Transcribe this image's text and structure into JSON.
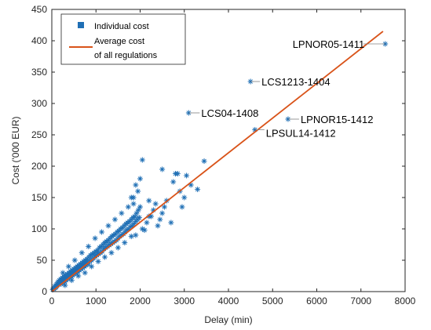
{
  "chart_data": {
    "type": "scatter",
    "title": "",
    "xlabel": "Delay (min)",
    "ylabel": "Cost ('000 EUR)",
    "xlim": [
      0,
      8000
    ],
    "ylim": [
      0,
      450
    ],
    "xticks": [
      0,
      1000,
      2000,
      3000,
      4000,
      5000,
      6000,
      7000,
      8000
    ],
    "yticks": [
      0,
      50,
      100,
      150,
      200,
      250,
      300,
      350,
      400,
      450
    ],
    "grid": false,
    "legend_position": "top-left",
    "colors": {
      "points": "#1f6fb5",
      "line": "#d95319"
    },
    "legend": {
      "points_label": "Individual cost",
      "line_label_1": "Average cost",
      "line_label_2": "of all regulations"
    },
    "trend_line": {
      "x": [
        0,
        7500
      ],
      "y": [
        0,
        415
      ]
    },
    "series": [
      {
        "name": "Individual cost",
        "points": [
          [
            20,
            3
          ],
          [
            35,
            5
          ],
          [
            50,
            4
          ],
          [
            60,
            8
          ],
          [
            75,
            6
          ],
          [
            90,
            10
          ],
          [
            100,
            7
          ],
          [
            110,
            12
          ],
          [
            120,
            9
          ],
          [
            130,
            14
          ],
          [
            140,
            11
          ],
          [
            150,
            16
          ],
          [
            160,
            13
          ],
          [
            175,
            18
          ],
          [
            190,
            15
          ],
          [
            200,
            20
          ],
          [
            210,
            12
          ],
          [
            225,
            17
          ],
          [
            240,
            22
          ],
          [
            250,
            14
          ],
          [
            260,
            19
          ],
          [
            275,
            24
          ],
          [
            290,
            16
          ],
          [
            300,
            21
          ],
          [
            310,
            26
          ],
          [
            325,
            18
          ],
          [
            340,
            23
          ],
          [
            350,
            28
          ],
          [
            360,
            20
          ],
          [
            375,
            25
          ],
          [
            390,
            30
          ],
          [
            400,
            22
          ],
          [
            410,
            27
          ],
          [
            425,
            32
          ],
          [
            440,
            24
          ],
          [
            450,
            29
          ],
          [
            460,
            34
          ],
          [
            475,
            26
          ],
          [
            490,
            31
          ],
          [
            500,
            36
          ],
          [
            510,
            28
          ],
          [
            525,
            33
          ],
          [
            540,
            38
          ],
          [
            550,
            30
          ],
          [
            560,
            35
          ],
          [
            575,
            40
          ],
          [
            590,
            32
          ],
          [
            600,
            37
          ],
          [
            610,
            42
          ],
          [
            625,
            34
          ],
          [
            640,
            39
          ],
          [
            650,
            44
          ],
          [
            660,
            36
          ],
          [
            675,
            41
          ],
          [
            690,
            46
          ],
          [
            700,
            38
          ],
          [
            710,
            43
          ],
          [
            725,
            48
          ],
          [
            740,
            40
          ],
          [
            750,
            45
          ],
          [
            760,
            50
          ],
          [
            775,
            42
          ],
          [
            790,
            47
          ],
          [
            800,
            52
          ],
          [
            820,
            44
          ],
          [
            840,
            55
          ],
          [
            860,
            48
          ],
          [
            880,
            58
          ],
          [
            900,
            50
          ],
          [
            920,
            60
          ],
          [
            940,
            53
          ],
          [
            960,
            62
          ],
          [
            980,
            56
          ],
          [
            1000,
            64
          ],
          [
            1020,
            58
          ],
          [
            1040,
            66
          ],
          [
            1060,
            60
          ],
          [
            1080,
            70
          ],
          [
            1100,
            62
          ],
          [
            1120,
            72
          ],
          [
            1140,
            64
          ],
          [
            1160,
            75
          ],
          [
            1180,
            68
          ],
          [
            1200,
            78
          ],
          [
            1220,
            70
          ],
          [
            1240,
            80
          ],
          [
            1260,
            72
          ],
          [
            1280,
            82
          ],
          [
            1300,
            74
          ],
          [
            1320,
            85
          ],
          [
            1340,
            76
          ],
          [
            1360,
            88
          ],
          [
            1380,
            78
          ],
          [
            1400,
            90
          ],
          [
            1420,
            80
          ],
          [
            1440,
            92
          ],
          [
            1460,
            82
          ],
          [
            1480,
            95
          ],
          [
            1500,
            85
          ],
          [
            1520,
            97
          ],
          [
            1540,
            88
          ],
          [
            1560,
            100
          ],
          [
            1580,
            90
          ],
          [
            1600,
            102
          ],
          [
            1620,
            92
          ],
          [
            1640,
            105
          ],
          [
            1660,
            95
          ],
          [
            1680,
            108
          ],
          [
            1700,
            98
          ],
          [
            1720,
            110
          ],
          [
            1740,
            100
          ],
          [
            1760,
            112
          ],
          [
            1780,
            103
          ],
          [
            1800,
            115
          ],
          [
            1820,
            105
          ],
          [
            1840,
            118
          ],
          [
            1860,
            108
          ],
          [
            1880,
            120
          ],
          [
            1900,
            112
          ],
          [
            1920,
            125
          ],
          [
            1940,
            115
          ],
          [
            1960,
            130
          ],
          [
            1980,
            118
          ],
          [
            2000,
            135
          ],
          [
            300,
            10
          ],
          [
            450,
            18
          ],
          [
            600,
            25
          ],
          [
            750,
            30
          ],
          [
            900,
            40
          ],
          [
            1050,
            48
          ],
          [
            1200,
            55
          ],
          [
            1350,
            62
          ],
          [
            1500,
            70
          ],
          [
            1650,
            78
          ],
          [
            1800,
            88
          ],
          [
            250,
            30
          ],
          [
            380,
            40
          ],
          [
            520,
            50
          ],
          [
            680,
            62
          ],
          [
            830,
            72
          ],
          [
            980,
            85
          ],
          [
            1130,
            95
          ],
          [
            1280,
            105
          ],
          [
            1430,
            115
          ],
          [
            1580,
            125
          ],
          [
            1730,
            135
          ],
          [
            1850,
            150
          ],
          [
            1900,
            170
          ],
          [
            2000,
            180
          ],
          [
            2050,
            210
          ],
          [
            1900,
            90
          ],
          [
            2050,
            100
          ],
          [
            2150,
            110
          ],
          [
            2200,
            120
          ],
          [
            2300,
            130
          ],
          [
            2350,
            140
          ],
          [
            2400,
            105
          ],
          [
            2450,
            115
          ],
          [
            2500,
            125
          ],
          [
            2550,
            135
          ],
          [
            2600,
            145
          ],
          [
            2500,
            195
          ],
          [
            2700,
            110
          ],
          [
            2750,
            175
          ],
          [
            2800,
            188
          ],
          [
            2850,
            188
          ],
          [
            2900,
            160
          ],
          [
            2950,
            135
          ],
          [
            3000,
            150
          ],
          [
            3050,
            185
          ],
          [
            3150,
            170
          ],
          [
            3300,
            163
          ],
          [
            3450,
            208
          ],
          [
            2200,
            145
          ],
          [
            2250,
            120
          ],
          [
            2100,
            98
          ],
          [
            1950,
            160
          ],
          [
            1850,
            140
          ],
          [
            1800,
            150
          ],
          [
            3100,
            285
          ],
          [
            4500,
            335
          ],
          [
            5350,
            275
          ],
          [
            4600,
            258
          ],
          [
            7550,
            395
          ]
        ]
      }
    ],
    "annotations": [
      {
        "text": "LPNOR05-1411",
        "x": 7550,
        "y": 395
      },
      {
        "text": "LCS1213-1404",
        "x": 4500,
        "y": 335
      },
      {
        "text": "LCS04-1408",
        "x": 3100,
        "y": 285
      },
      {
        "text": "LPNOR15-1412",
        "x": 5350,
        "y": 275
      },
      {
        "text": "LPSUL14-1412",
        "x": 4600,
        "y": 258
      }
    ]
  }
}
